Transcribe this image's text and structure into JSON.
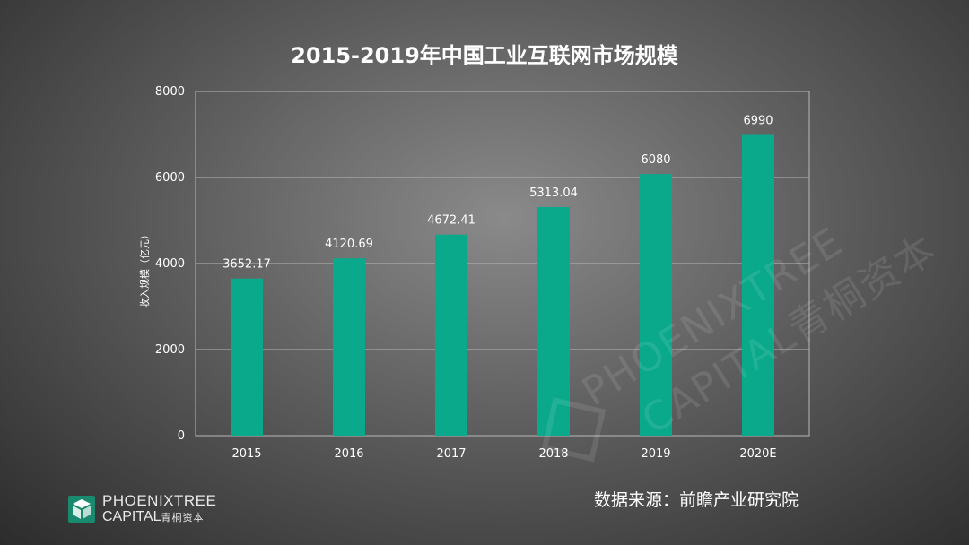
{
  "title": "2015-2019年中国工业互联网市场规模",
  "source": "数据来源：前瞻产业研究院",
  "logo": {
    "line1": "PHOENIXTREE",
    "line2_en": "CAPITAL",
    "line2_cn": "青桐资本"
  },
  "watermark": {
    "line1": "PHOENIXTREE",
    "line2": "CAPITAL青桐资本"
  },
  "colors": {
    "bar": "#0aa98b",
    "grid": "#b8b8b8",
    "axis_text": "#ffffff",
    "brand": "#1a8a6e"
  },
  "chart_data": {
    "type": "bar",
    "title": "2015-2019年中国工业互联网市场规模",
    "categories": [
      "2015",
      "2016",
      "2017",
      "2018",
      "2019",
      "2020E"
    ],
    "values": [
      3652.17,
      4120.69,
      4672.41,
      5313.04,
      6080,
      6990
    ],
    "value_labels": [
      "3652.17",
      "4120.69",
      "4672.41",
      "5313.04",
      "6080",
      "6990"
    ],
    "xlabel": "",
    "ylabel": "收入规模（亿元）",
    "ylim": [
      0,
      8000
    ],
    "yticks": [
      0,
      2000,
      4000,
      6000,
      8000
    ],
    "grid": true,
    "legend": "none"
  }
}
